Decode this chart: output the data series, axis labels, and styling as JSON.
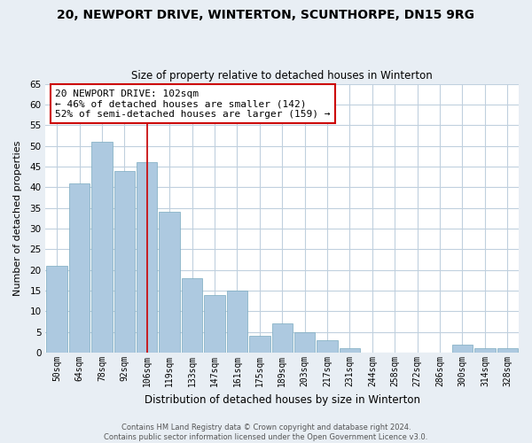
{
  "title": "20, NEWPORT DRIVE, WINTERTON, SCUNTHORPE, DN15 9RG",
  "subtitle": "Size of property relative to detached houses in Winterton",
  "xlabel": "Distribution of detached houses by size in Winterton",
  "ylabel": "Number of detached properties",
  "categories": [
    "50sqm",
    "64sqm",
    "78sqm",
    "92sqm",
    "106sqm",
    "119sqm",
    "133sqm",
    "147sqm",
    "161sqm",
    "175sqm",
    "189sqm",
    "203sqm",
    "217sqm",
    "231sqm",
    "244sqm",
    "258sqm",
    "272sqm",
    "286sqm",
    "300sqm",
    "314sqm",
    "328sqm"
  ],
  "values": [
    21,
    41,
    51,
    44,
    46,
    34,
    18,
    14,
    15,
    4,
    7,
    5,
    3,
    1,
    0,
    0,
    0,
    0,
    2,
    1,
    1
  ],
  "bar_color": "#adc9e0",
  "vline_bar_index": 4,
  "vline_color": "#cc0000",
  "ylim": [
    0,
    65
  ],
  "yticks": [
    0,
    5,
    10,
    15,
    20,
    25,
    30,
    35,
    40,
    45,
    50,
    55,
    60,
    65
  ],
  "annotation_title": "20 NEWPORT DRIVE: 102sqm",
  "annotation_line1": "← 46% of detached houses are smaller (142)",
  "annotation_line2": "52% of semi-detached houses are larger (159) →",
  "footer_line1": "Contains HM Land Registry data © Crown copyright and database right 2024.",
  "footer_line2": "Contains public sector information licensed under the Open Government Licence v3.0.",
  "bg_color": "#e8eef4",
  "plot_bg_color": "#ffffff",
  "grid_color": "#c0d0de"
}
